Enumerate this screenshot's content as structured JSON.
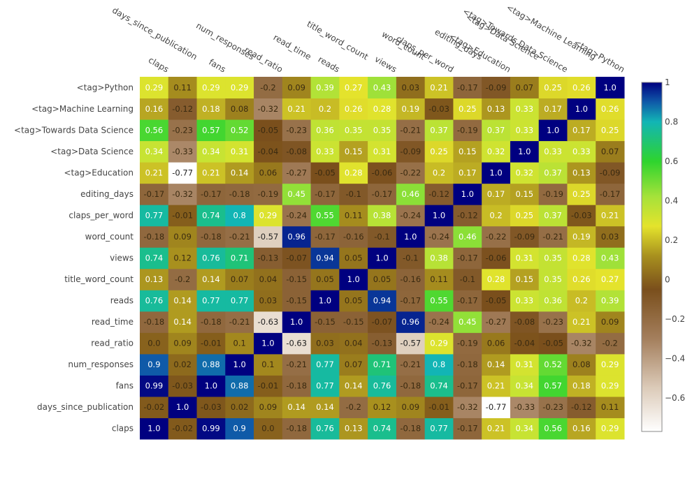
{
  "chart_data": {
    "type": "heatmap",
    "title": "",
    "xlabel": "",
    "ylabel": "",
    "x": [
      "claps",
      "days_since_publication",
      "fans",
      "num_responses",
      "read_ratio",
      "read_time",
      "reads",
      "title_word_count",
      "views",
      "word_count",
      "claps_per_word",
      "editing_days",
      "<tag>Education",
      "<tag>Data Science",
      "<tag>Towards Data Science",
      "<tag>Machine Learning",
      "<tag>Python"
    ],
    "y": [
      "claps",
      "days_since_publication",
      "fans",
      "num_responses",
      "read_ratio",
      "read_time",
      "reads",
      "title_word_count",
      "views",
      "word_count",
      "claps_per_word",
      "editing_days",
      "<tag>Education",
      "<tag>Data Science",
      "<tag>Towards Data Science",
      "<tag>Machine Learning",
      "<tag>Python"
    ],
    "z": [
      [
        1.0,
        -0.02,
        0.99,
        0.9,
        0.0,
        -0.18,
        0.76,
        0.13,
        0.74,
        -0.18,
        0.77,
        -0.17,
        0.21,
        0.34,
        0.56,
        0.16,
        0.29
      ],
      [
        -0.02,
        1.0,
        -0.03,
        0.02,
        0.09,
        0.14,
        0.14,
        -0.2,
        0.12,
        0.09,
        -0.01,
        -0.32,
        -0.77,
        -0.33,
        -0.23,
        -0.12,
        0.11
      ],
      [
        0.99,
        -0.03,
        1.0,
        0.88,
        -0.01,
        -0.18,
        0.77,
        0.14,
        0.76,
        -0.18,
        0.74,
        -0.17,
        0.21,
        0.34,
        0.57,
        0.18,
        0.29
      ],
      [
        0.9,
        0.02,
        0.88,
        1.0,
        0.1,
        -0.21,
        0.77,
        0.07,
        0.71,
        -0.21,
        0.8,
        -0.18,
        0.14,
        0.31,
        0.52,
        0.08,
        0.29
      ],
      [
        0.0,
        0.09,
        -0.01,
        0.1,
        1.0,
        -0.63,
        0.03,
        0.04,
        -0.13,
        -0.57,
        0.29,
        -0.19,
        0.06,
        -0.04,
        -0.05,
        -0.32,
        -0.2
      ],
      [
        -0.18,
        0.14,
        -0.18,
        -0.21,
        -0.63,
        1.0,
        -0.15,
        -0.15,
        -0.07,
        0.96,
        -0.24,
        0.45,
        -0.27,
        -0.08,
        -0.23,
        0.21,
        0.09
      ],
      [
        0.76,
        0.14,
        0.77,
        0.77,
        0.03,
        -0.15,
        1.0,
        0.05,
        0.94,
        -0.17,
        0.55,
        -0.17,
        -0.05,
        0.33,
        0.36,
        0.2,
        0.39
      ],
      [
        0.13,
        -0.2,
        0.14,
        0.07,
        0.04,
        -0.15,
        0.05,
        1.0,
        0.05,
        -0.16,
        0.11,
        -0.1,
        0.28,
        0.15,
        0.35,
        0.26,
        0.27
      ],
      [
        0.74,
        0.12,
        0.76,
        0.71,
        -0.13,
        -0.07,
        0.94,
        0.05,
        1.0,
        -0.1,
        0.38,
        -0.17,
        -0.06,
        0.31,
        0.35,
        0.28,
        0.43
      ],
      [
        -0.18,
        0.09,
        -0.18,
        -0.21,
        -0.57,
        0.96,
        -0.17,
        -0.16,
        -0.1,
        1.0,
        -0.24,
        0.46,
        -0.22,
        -0.09,
        -0.21,
        0.19,
        0.03
      ],
      [
        0.77,
        -0.01,
        0.74,
        0.8,
        0.29,
        -0.24,
        0.55,
        0.11,
        0.38,
        -0.24,
        1.0,
        -0.12,
        0.2,
        0.25,
        0.37,
        -0.03,
        0.21
      ],
      [
        -0.17,
        -0.32,
        -0.17,
        -0.18,
        -0.19,
        0.45,
        -0.17,
        -0.1,
        -0.17,
        0.46,
        -0.12,
        1.0,
        0.17,
        0.15,
        -0.19,
        0.25,
        -0.17
      ],
      [
        0.21,
        -0.77,
        0.21,
        0.14,
        0.06,
        -0.27,
        -0.05,
        0.28,
        -0.06,
        -0.22,
        0.2,
        0.17,
        1.0,
        0.32,
        0.37,
        0.13,
        -0.09
      ],
      [
        0.34,
        -0.33,
        0.34,
        0.31,
        -0.04,
        -0.08,
        0.33,
        0.15,
        0.31,
        -0.09,
        0.25,
        0.15,
        0.32,
        1.0,
        0.33,
        0.33,
        0.07
      ],
      [
        0.56,
        -0.23,
        0.57,
        0.52,
        -0.05,
        -0.23,
        0.36,
        0.35,
        0.35,
        -0.21,
        0.37,
        -0.19,
        0.37,
        0.33,
        1.0,
        0.17,
        0.25
      ],
      [
        0.16,
        -0.12,
        0.18,
        0.08,
        -0.32,
        0.21,
        0.2,
        0.26,
        0.28,
        0.19,
        -0.03,
        0.25,
        0.13,
        0.33,
        0.17,
        1.0,
        0.26
      ],
      [
        0.29,
        0.11,
        0.29,
        0.29,
        -0.2,
        0.09,
        0.39,
        0.27,
        0.43,
        0.03,
        0.21,
        -0.17,
        -0.09,
        0.07,
        0.25,
        0.26,
        1.0
      ]
    ],
    "zrange": [
      -0.77,
      1.0
    ],
    "colorscale": [
      [
        -0.77,
        "#ffffff"
      ],
      [
        -0.55,
        "#dccbb9"
      ],
      [
        -0.3,
        "#a47f5d"
      ],
      [
        -0.05,
        "#7a4f1c"
      ],
      [
        0.12,
        "#a8901e"
      ],
      [
        0.27,
        "#e4e32c"
      ],
      [
        0.42,
        "#a6e23a"
      ],
      [
        0.6,
        "#2ed42e"
      ],
      [
        0.8,
        "#12b5b5"
      ],
      [
        0.9,
        "#0f5aa8"
      ],
      [
        1.0,
        "#000080"
      ]
    ],
    "colorbar_ticks": [
      1,
      0.8,
      0.6,
      0.4,
      0.2,
      0,
      -0.2,
      -0.4,
      -0.6
    ],
    "colorbar_tick_labels": [
      "1",
      "0.8",
      "0.6",
      "0.4",
      "0.2",
      "0",
      "−0.2",
      "−0.4",
      "−0.6"
    ],
    "grid": false,
    "legend": "colorbar-right",
    "xaxis_side": "top",
    "xtick_angle_deg": 30
  }
}
